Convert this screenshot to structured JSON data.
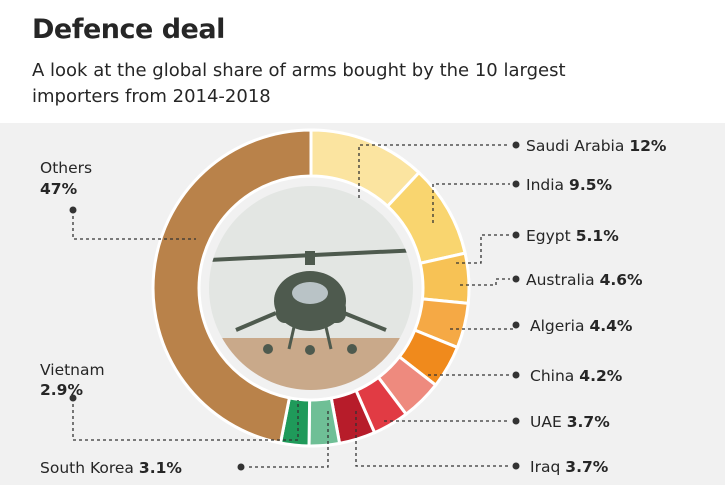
{
  "title": "Defence deal",
  "subtitle": "A look at the global share of arms bought by the 10 largest importers from 2014-2018",
  "chart_data": {
    "type": "pie",
    "title": "Defence deal",
    "subtitle": "A look at the global share of arms bought by the 10 largest importers from 2014-2018",
    "unit": "%",
    "slices": [
      {
        "label": "Saudi Arabia",
        "value": 12,
        "value_label": "12%",
        "color": "#fbe4a0"
      },
      {
        "label": "India",
        "value": 9.5,
        "value_label": "9.5%",
        "color": "#f9d56f"
      },
      {
        "label": "Egypt",
        "value": 5.1,
        "value_label": "5.1%",
        "color": "#f7c255"
      },
      {
        "label": "Australia",
        "value": 4.6,
        "value_label": "4.6%",
        "color": "#f5a945"
      },
      {
        "label": "Algeria",
        "value": 4.4,
        "value_label": "4.4%",
        "color": "#f08a1c"
      },
      {
        "label": "China",
        "value": 4.2,
        "value_label": "4.2%",
        "color": "#ee8a7e"
      },
      {
        "label": "UAE",
        "value": 3.7,
        "value_label": "3.7%",
        "color": "#e13b44"
      },
      {
        "label": "Iraq",
        "value": 3.7,
        "value_label": "3.7%",
        "color": "#b71c2a"
      },
      {
        "label": "South Korea",
        "value": 3.1,
        "value_label": "3.1%",
        "color": "#6fbf96"
      },
      {
        "label": "Vietnam",
        "value": 2.9,
        "value_label": "2.9%",
        "color": "#1f9a5a"
      },
      {
        "label": "Others",
        "value": 47,
        "value_label": "47%",
        "color": "#b9824a"
      }
    ]
  },
  "colors": {
    "ring_border": "#ffffff",
    "leader_line": "#333333",
    "photo_sky": "#e3e6e3",
    "photo_ground": "#c9a98a",
    "helicopter": "#4e5a4e"
  },
  "center_image": {
    "icon": "helicopter-icon"
  }
}
